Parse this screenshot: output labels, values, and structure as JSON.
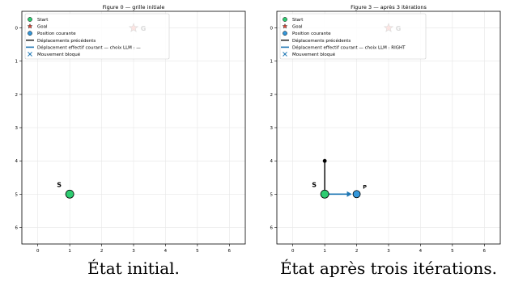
{
  "colors": {
    "start": "#2ecc71",
    "goal": "#e74c3c",
    "current": "#3498db",
    "prev": "#000000",
    "move": "#1f77b4",
    "grid": "#e6e6e6"
  },
  "legend": {
    "left": [
      "Start",
      "Goal",
      "Position courante",
      "Déplacements précédents",
      "Déplacement effectif courant — choix LLM : —",
      "Mouvement bloqué"
    ],
    "right": [
      "Start",
      "Goal",
      "Position courante",
      "Déplacements précédents",
      "Déplacement effectif courant — choix LLM : RIGHT",
      "Mouvement bloqué"
    ]
  },
  "chart_data": [
    {
      "type": "scatter",
      "title": "Figure 0 — grille initiale",
      "xlim": [
        -0.5,
        6.5
      ],
      "ylim": [
        6.5,
        -0.5
      ],
      "y_inverted": true,
      "xticks": [
        0,
        1,
        2,
        3,
        4,
        5,
        6
      ],
      "yticks": [
        0,
        1,
        2,
        3,
        4,
        5,
        6
      ],
      "grid": true,
      "legend_position": "top-left",
      "start": {
        "x": 1,
        "y": 5,
        "label": "S"
      },
      "goal": {
        "x": 3,
        "y": 0,
        "label": "G"
      },
      "previous_moves": [],
      "current_move": null,
      "current": null
    },
    {
      "type": "scatter",
      "title": "Figure 3 — après 3 itérations",
      "xlim": [
        -0.5,
        6.5
      ],
      "ylim": [
        6.5,
        -0.5
      ],
      "y_inverted": true,
      "xticks": [
        0,
        1,
        2,
        3,
        4,
        5,
        6
      ],
      "yticks": [
        0,
        1,
        2,
        3,
        4,
        5,
        6
      ],
      "grid": true,
      "legend_position": "top-left",
      "start": {
        "x": 1,
        "y": 5,
        "label": "S"
      },
      "goal": {
        "x": 3,
        "y": 0,
        "label": "G"
      },
      "previous_moves": [
        {
          "x1": 1,
          "y1": 4,
          "x2": 1,
          "y2": 5
        }
      ],
      "current_move": {
        "x1": 1,
        "y1": 5,
        "x2": 2,
        "y2": 5
      },
      "current": {
        "x": 2,
        "y": 5,
        "label": "P"
      }
    }
  ],
  "captions": [
    "État initial.",
    "État après trois itérations."
  ]
}
